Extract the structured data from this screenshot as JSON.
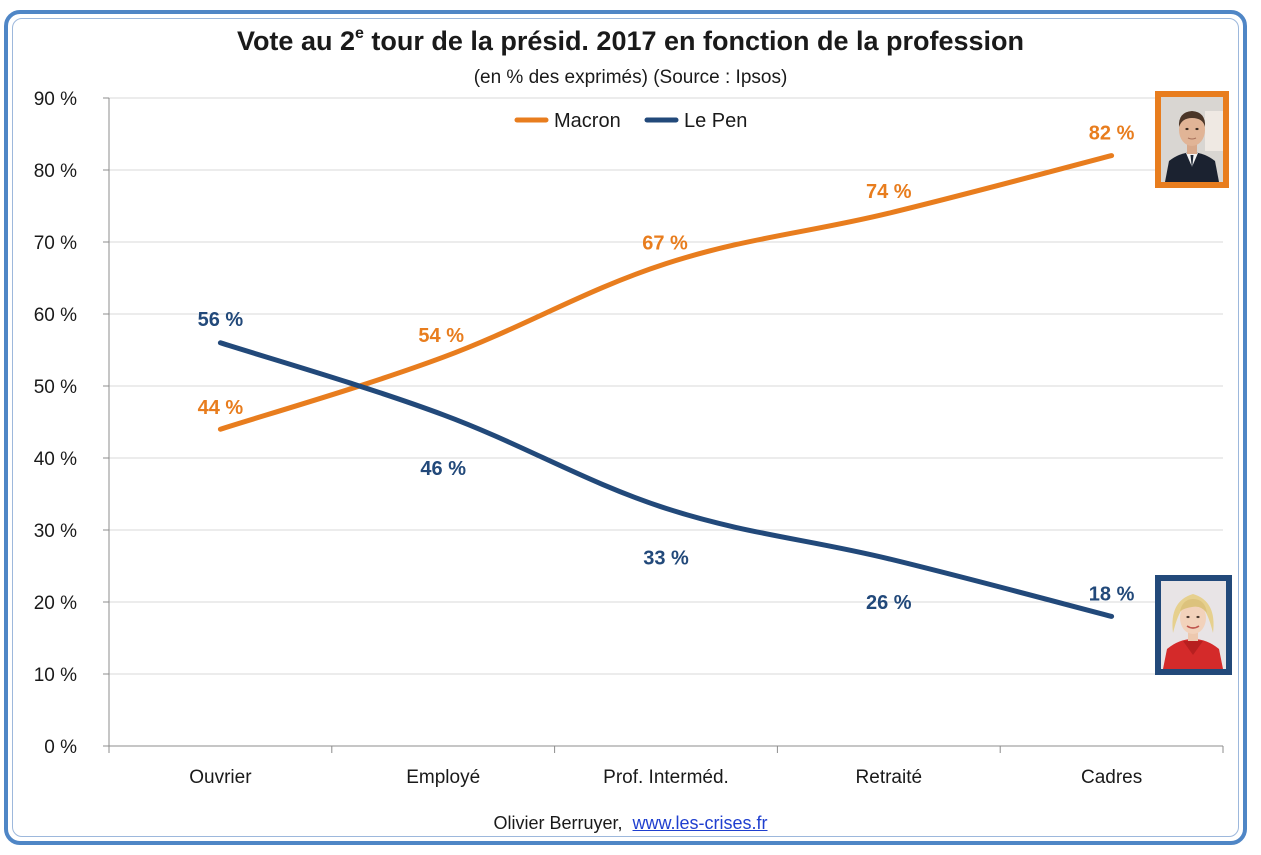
{
  "title": {
    "part1": "Vote au 2",
    "sup": "e",
    "part2": " tour de la présid. 2017 en fonction de la profession"
  },
  "subtitle": "(en % des exprimés) (Source : Ipsos)",
  "footer": {
    "author": "Olivier Berruyer,",
    "link": "www.les-crises.fr"
  },
  "colors": {
    "macron": "#e87d1e",
    "lepen": "#22497a",
    "frame": "#4f86c6"
  },
  "chart_data": {
    "type": "line",
    "categories": [
      "Ouvrier",
      "Employé",
      "Prof. Interméd.",
      "Retraité",
      "Cadres"
    ],
    "series": [
      {
        "name": "Macron",
        "values": [
          44,
          54,
          67,
          74,
          82
        ],
        "labels": [
          "44 %",
          "54 %",
          "67 %",
          "74 %",
          "82 %"
        ]
      },
      {
        "name": "Le Pen",
        "values": [
          56,
          46,
          33,
          26,
          18
        ],
        "labels": [
          "56 %",
          "46 %",
          "33 %",
          "26 %",
          "18 %"
        ]
      }
    ],
    "ylim": [
      0,
      90
    ],
    "yticks": [
      0,
      10,
      20,
      30,
      40,
      50,
      60,
      70,
      80,
      90
    ],
    "ytick_labels": [
      "0 %",
      "10 %",
      "20 %",
      "30 %",
      "40 %",
      "50 %",
      "60 %",
      "70 %",
      "80 %",
      "90 %"
    ],
    "grid": true,
    "legend": "top-center",
    "smooth": true
  },
  "photos": {
    "macron": "macron-photo",
    "lepen": "le-pen-photo"
  }
}
